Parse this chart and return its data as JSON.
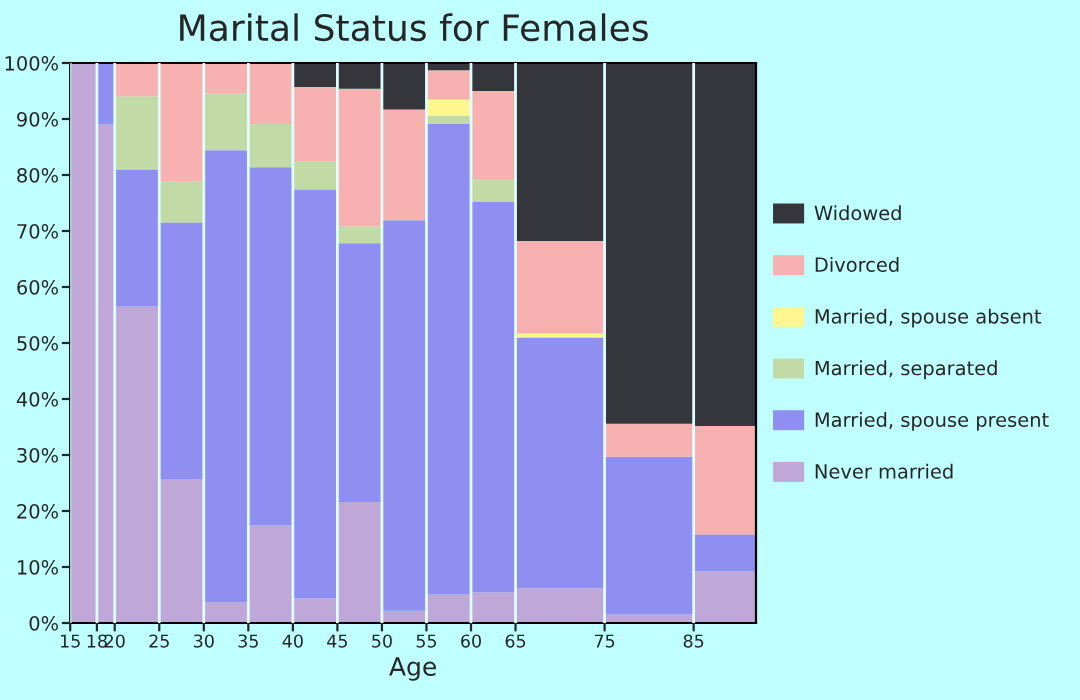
{
  "chart_data": {
    "type": "bar",
    "title": "Marital Status for Females",
    "xlabel": "Age",
    "stacked": true,
    "x": [
      16.5,
      19,
      22.5,
      27.5,
      32.5,
      37.5,
      42.5,
      47.5,
      52.5,
      57.5,
      62.5,
      70,
      80,
      88.5
    ],
    "xlim": [
      15,
      92
    ],
    "xticks": [
      15,
      18,
      20,
      25,
      30,
      35,
      40,
      45,
      50,
      55,
      60,
      65,
      75,
      85
    ],
    "ylim": [
      0,
      100
    ],
    "yticks": [
      {
        "value": 0,
        "label": "0%"
      },
      {
        "value": 10,
        "label": "10%"
      },
      {
        "value": 20,
        "label": "20%"
      },
      {
        "value": 30,
        "label": "30%"
      },
      {
        "value": 40,
        "label": "40%"
      },
      {
        "value": 50,
        "label": "50%"
      },
      {
        "value": 60,
        "label": "60%"
      },
      {
        "value": 70,
        "label": "70%"
      },
      {
        "value": 80,
        "label": "80%"
      },
      {
        "value": 90,
        "label": "90%"
      },
      {
        "value": 100,
        "label": "100%"
      }
    ],
    "legend": "right",
    "grid": "x",
    "series": [
      {
        "name": "Never married",
        "color": "#bfa7d8",
        "values": [
          100,
          89,
          56.5,
          25.7,
          3.7,
          17.4,
          4.4,
          21.6,
          2.2,
          5.1,
          5.5,
          6.2,
          1.5,
          9.2
        ]
      },
      {
        "name": "Married, spouse present",
        "color": "#8e8ff0",
        "values": [
          0,
          11,
          24.5,
          45.8,
          80.7,
          64,
          73,
          46.2,
          69.7,
          84,
          69.7,
          44.8,
          28.2,
          6.6
        ]
      },
      {
        "name": "Married, separated",
        "color": "#c1daa6",
        "values": [
          0,
          0,
          13,
          7.4,
          10.2,
          7.7,
          5.1,
          3,
          0,
          1.5,
          4.1,
          0,
          0,
          0
        ]
      },
      {
        "name": "Married, spouse absent",
        "color": "#fff68f",
        "values": [
          0,
          0,
          0,
          0,
          0,
          0,
          0,
          0,
          0,
          2.9,
          0,
          0.7,
          0,
          0
        ]
      },
      {
        "name": "Divorced",
        "color": "#f7b1b0",
        "values": [
          0,
          0,
          6,
          21.1,
          5.4,
          10.9,
          13.2,
          24.6,
          19.8,
          5.2,
          15.7,
          16.5,
          5.9,
          19.4
        ]
      },
      {
        "name": "Widowed",
        "color": "#35363b",
        "values": [
          0,
          0,
          0,
          0,
          0,
          0,
          4.3,
          4.6,
          8.3,
          1.3,
          5,
          31.8,
          64.4,
          64.8
        ]
      }
    ]
  }
}
